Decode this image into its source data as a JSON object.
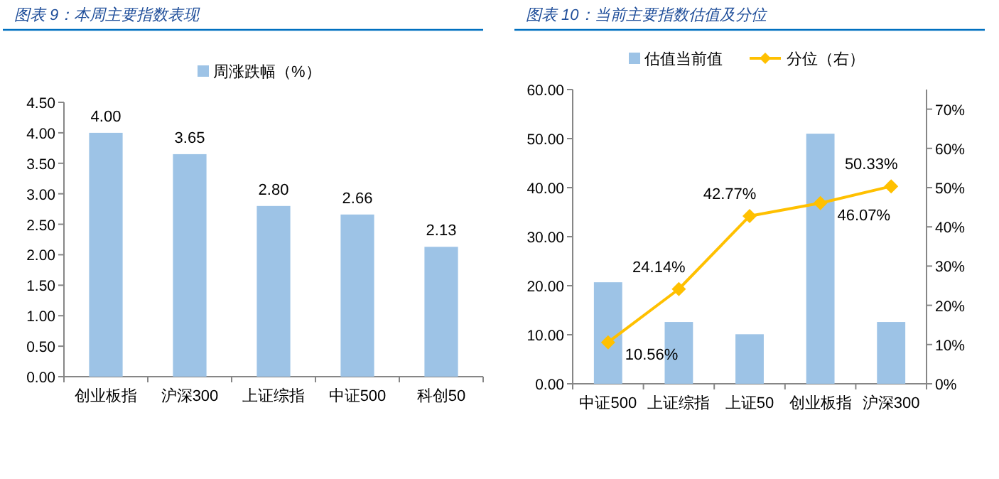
{
  "chart_data": [
    {
      "type": "bar",
      "title": "图表 9：本周主要指数表现",
      "categories": [
        "创业板指",
        "沪深300",
        "上证综指",
        "中证500",
        "科创50"
      ],
      "series": [
        {
          "name": "周涨跌幅（%）",
          "color": "#9dc3e6",
          "values": [
            4.0,
            3.65,
            2.8,
            2.66,
            2.13
          ],
          "value_labels": [
            "4.00",
            "3.65",
            "2.80",
            "2.66",
            "2.13"
          ]
        }
      ],
      "ylim": [
        0,
        4.5
      ],
      "yticks": [
        {
          "value": 0,
          "label": "0.00"
        },
        {
          "value": 0.5,
          "label": "0.50"
        },
        {
          "value": 1,
          "label": "1.00"
        },
        {
          "value": 1.5,
          "label": "1.50"
        },
        {
          "value": 2,
          "label": "2.00"
        },
        {
          "value": 2.5,
          "label": "2.50"
        },
        {
          "value": 3,
          "label": "3.00"
        },
        {
          "value": 3.5,
          "label": "3.50"
        },
        {
          "value": 4,
          "label": "4.00"
        },
        {
          "value": 4.5,
          "label": "4.50"
        }
      ],
      "legend": "top",
      "grid": false
    },
    {
      "type": "bar",
      "title": "图表 10：当前主要指数估值及分位",
      "categories": [
        "中证500",
        "上证综指",
        "上证50",
        "创业板指",
        "沪深300"
      ],
      "series": [
        {
          "name": "估值当前值",
          "color": "#9dc3e6",
          "values": [
            20.7,
            12.6,
            10.1,
            51.0,
            12.6
          ]
        },
        {
          "name": "分位（右）",
          "type": "line",
          "axis": "y2",
          "color": "#ffc000",
          "marker": "diamond",
          "values": [
            10.56,
            24.14,
            42.77,
            46.07,
            50.33
          ],
          "value_labels": [
            "10.56%",
            "24.14%",
            "42.77%",
            "46.07%",
            "50.33%"
          ]
        }
      ],
      "ylim": [
        0,
        60
      ],
      "yticks": [
        {
          "value": 0,
          "label": "0.00"
        },
        {
          "value": 10,
          "label": "10.00"
        },
        {
          "value": 20,
          "label": "20.00"
        },
        {
          "value": 30,
          "label": "30.00"
        },
        {
          "value": 40,
          "label": "40.00"
        },
        {
          "value": 50,
          "label": "50.00"
        },
        {
          "value": 60,
          "label": "60.00"
        }
      ],
      "y2lim": [
        0,
        75
      ],
      "y2ticks": [
        {
          "value": 0,
          "label": "0%"
        },
        {
          "value": 10,
          "label": "10%"
        },
        {
          "value": 20,
          "label": "20%"
        },
        {
          "value": 30,
          "label": "30%"
        },
        {
          "value": 40,
          "label": "40%"
        },
        {
          "value": 50,
          "label": "50%"
        },
        {
          "value": 60,
          "label": "60%"
        },
        {
          "value": 70,
          "label": "70%"
        }
      ],
      "legend": "top",
      "grid": false
    }
  ]
}
